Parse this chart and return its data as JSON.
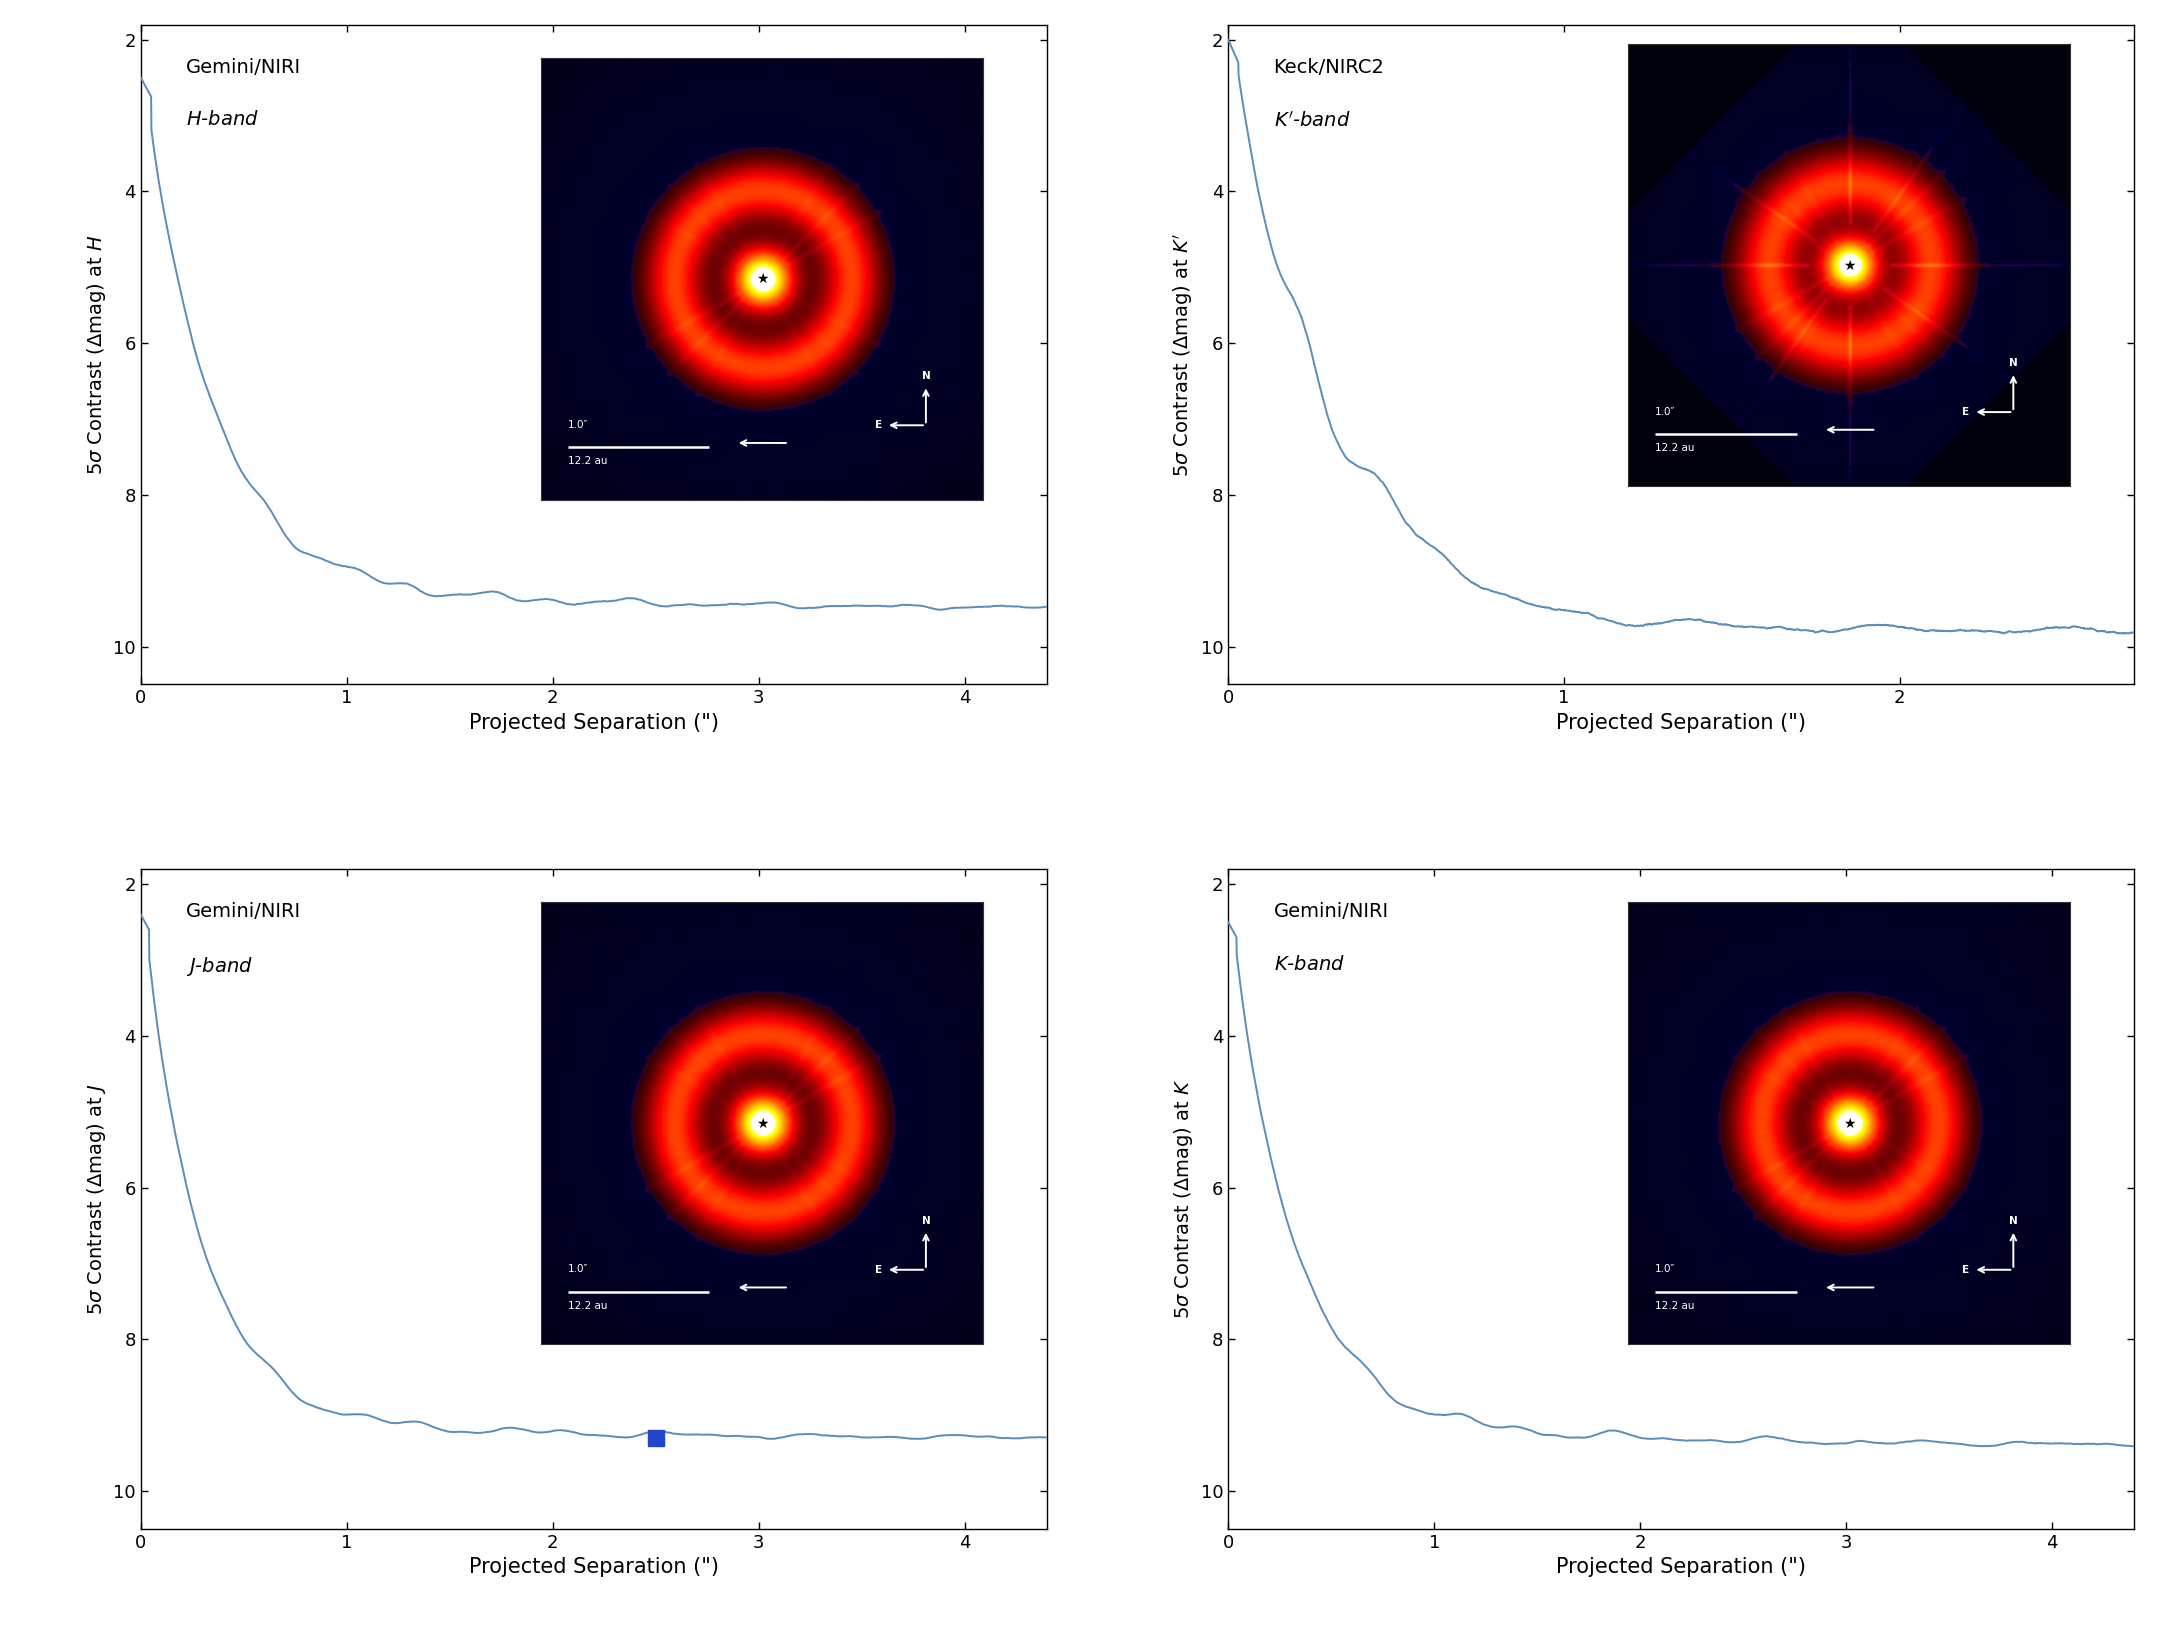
{
  "panels": [
    {
      "title_line1": "Gemini/NIRI",
      "title_line2": "$H$-band",
      "ylabel": "5$\\sigma$ Contrast ($\\Delta$mag) at $H$",
      "xlabel": "Projected Separation (\")",
      "xlim": [
        0,
        4.4
      ],
      "ylim": [
        10.5,
        1.8
      ],
      "xticks": [
        0,
        1,
        2,
        3,
        4
      ],
      "yticks": [
        2,
        4,
        6,
        8,
        10
      ],
      "has_marker": false,
      "marker_x": null,
      "marker_y": null,
      "style": "H"
    },
    {
      "title_line1": "Keck/NIRC2",
      "title_line2": "$K^{\\prime}$-band",
      "ylabel": "5$\\sigma$ Contrast ($\\Delta$mag) at $K^{\\prime}$",
      "xlabel": "Projected Separation (\")",
      "xlim": [
        0,
        2.7
      ],
      "ylim": [
        10.5,
        1.8
      ],
      "xticks": [
        0,
        1,
        2
      ],
      "yticks": [
        2,
        4,
        6,
        8,
        10
      ],
      "has_marker": false,
      "marker_x": null,
      "marker_y": null,
      "style": "keck"
    },
    {
      "title_line1": "Gemini/NIRI",
      "title_line2": "$J$-band",
      "ylabel": "5$\\sigma$ Contrast ($\\Delta$mag) at $J$",
      "xlabel": "Projected Separation (\")",
      "xlim": [
        0,
        4.4
      ],
      "ylim": [
        10.5,
        1.8
      ],
      "xticks": [
        0,
        1,
        2,
        3,
        4
      ],
      "yticks": [
        2,
        4,
        6,
        8,
        10
      ],
      "has_marker": true,
      "marker_x": 2.5,
      "marker_y": 9.3,
      "style": "J"
    },
    {
      "title_line1": "Gemini/NIRI",
      "title_line2": "$K$-band",
      "ylabel": "5$\\sigma$ Contrast ($\\Delta$mag) at $K$",
      "xlabel": "Projected Separation (\")",
      "xlim": [
        0,
        4.4
      ],
      "ylim": [
        10.5,
        1.8
      ],
      "xticks": [
        0,
        1,
        2,
        3,
        4
      ],
      "yticks": [
        2,
        4,
        6,
        8,
        10
      ],
      "has_marker": false,
      "marker_x": null,
      "marker_y": null,
      "style": "K"
    }
  ],
  "line_color": "#5b8db8",
  "marker_color": "#2244cc",
  "background_color": "#ffffff"
}
